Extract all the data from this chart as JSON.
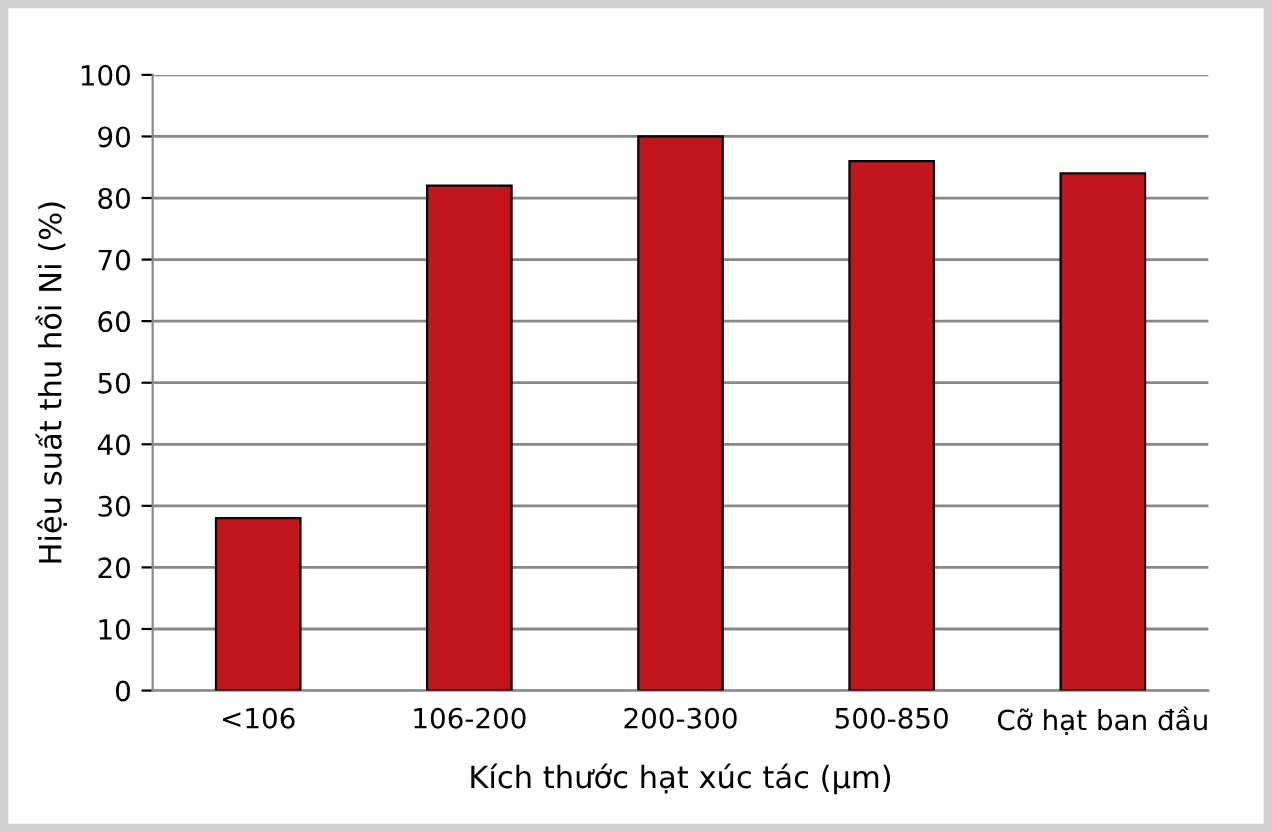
{
  "chart_data": {
    "type": "bar",
    "xlabel": "Kích thước hạt xúc tác (µm)",
    "ylabel": "Hiệu suất thu hồi Ni (%)",
    "categories": [
      "<106",
      "106-200",
      "200-300",
      "500-850",
      "Cỡ hạt ban đầu"
    ],
    "values": [
      28,
      82,
      90,
      86,
      84
    ],
    "color": "#c3161c",
    "ylim": [
      0,
      100
    ],
    "yticks": [
      0,
      10,
      20,
      30,
      40,
      50,
      60,
      70,
      80,
      90,
      100
    ],
    "grid": "y"
  }
}
